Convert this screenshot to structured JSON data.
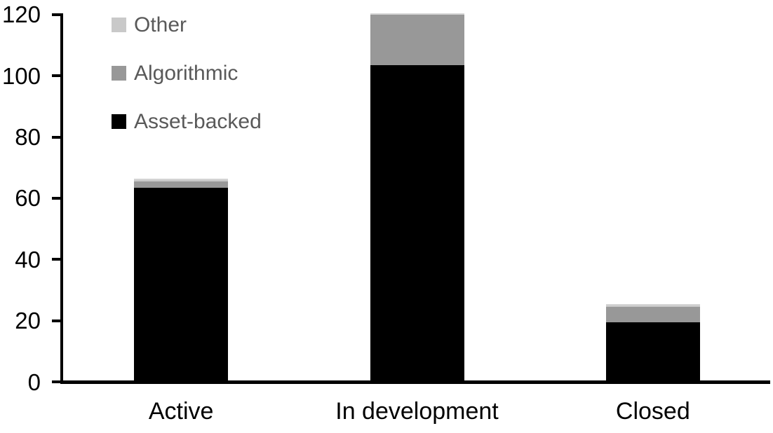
{
  "chart_data": {
    "type": "bar",
    "stacked": true,
    "title": "",
    "xlabel": "",
    "ylabel": "",
    "categories": [
      "Active",
      "In development",
      "Closed"
    ],
    "series": [
      {
        "name": "Asset-backed",
        "color": "#000000",
        "values": [
          63,
          103,
          19
        ]
      },
      {
        "name": "Algorithmic",
        "color": "#989898",
        "values": [
          2,
          17,
          5
        ]
      },
      {
        "name": "Other",
        "color": "#c9c9c9",
        "values": [
          1,
          0,
          1
        ]
      }
    ],
    "totals": [
      66,
      120,
      25
    ],
    "yticks": [
      0,
      20,
      40,
      60,
      80,
      100,
      120
    ],
    "ylim": [
      0,
      120
    ],
    "grid": false,
    "legend_position": "top-left",
    "legend_order": [
      "Other",
      "Algorithmic",
      "Asset-backed"
    ]
  },
  "colors": {
    "axis": "#000000",
    "tick_label_text": "#000000",
    "category_label_text": "#000000",
    "legend_text": "#595959",
    "background": "#ffffff",
    "bar_top_edge": "#d4d4d4"
  }
}
